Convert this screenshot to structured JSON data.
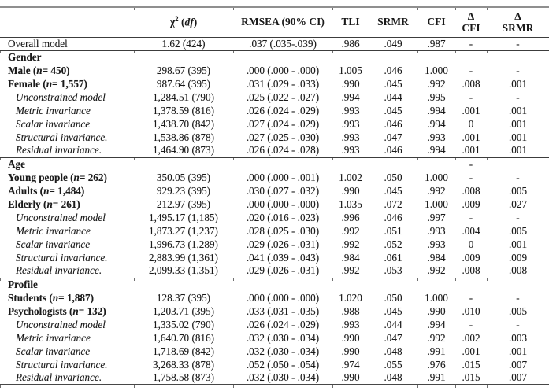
{
  "colors": {
    "text": "#1a1a1a",
    "rule_dark": "#3c3c3c",
    "rule_gray": "#8f8f8f"
  },
  "table": {
    "columns": [
      {
        "key": "model",
        "header_parts": []
      },
      {
        "key": "chi2",
        "header_parts": [
          {
            "t": "χ"
          },
          {
            "t": "2",
            "sup": true
          },
          {
            "t": " ("
          },
          {
            "t": "df",
            "i": true
          },
          {
            "t": ")"
          }
        ]
      },
      {
        "key": "rmsea",
        "header_parts": [
          {
            "t": "RMSEA (90% CI)"
          }
        ]
      },
      {
        "key": "tli",
        "header_parts": [
          {
            "t": "TLI"
          }
        ]
      },
      {
        "key": "srmr",
        "header_parts": [
          {
            "t": "SRMR"
          }
        ]
      },
      {
        "key": "cfi",
        "header_parts": [
          {
            "t": "CFI"
          }
        ]
      },
      {
        "key": "delta_cfi",
        "header_lines": [
          "Δ",
          "CFI"
        ]
      },
      {
        "key": "delta_srmr",
        "header_lines": [
          "Δ",
          "SRMR"
        ]
      }
    ],
    "rows": [
      {
        "style": "plain",
        "rule_above": false,
        "label_parts": [
          {
            "t": "Overall model"
          }
        ],
        "values": [
          "1.62 (424)",
          ".037 (.035-.039)",
          ".986",
          ".049",
          ".987",
          "-",
          "-"
        ]
      },
      {
        "style": "section",
        "rule_above": true,
        "label_parts": [
          {
            "t": "Gender"
          }
        ],
        "values": [
          "",
          "",
          "",
          "",
          "",
          "",
          ""
        ]
      },
      {
        "style": "group",
        "rule_above": false,
        "label_parts": [
          {
            "t": "Male ("
          },
          {
            "t": "n",
            "i": true
          },
          {
            "t": "= 450)"
          }
        ],
        "values": [
          "298.67 (395)",
          ".000 (.000 - .000)",
          "1.005",
          ".046",
          "1.000",
          "-",
          "-"
        ]
      },
      {
        "style": "group",
        "rule_above": false,
        "label_parts": [
          {
            "t": "Female ("
          },
          {
            "t": "n",
            "i": true
          },
          {
            "t": "= 1,557)"
          }
        ],
        "values": [
          "987.64 (395)",
          ".031 (.029 - .033)",
          ".990",
          ".045",
          ".992",
          ".008",
          ".001"
        ]
      },
      {
        "style": "sub",
        "rule_above": false,
        "label_parts": [
          {
            "t": "Unconstrained model"
          }
        ],
        "values": [
          "1,284.51 (790)",
          ".025 (.022 - .027)",
          ".994",
          ".044",
          ".995",
          "-",
          "-"
        ]
      },
      {
        "style": "sub",
        "rule_above": false,
        "label_parts": [
          {
            "t": "Metric invariance"
          }
        ],
        "values": [
          "1,378.59 (816)",
          ".026 (.024 - .029)",
          ".993",
          ".045",
          ".994",
          ".001",
          ".001"
        ]
      },
      {
        "style": "sub",
        "rule_above": false,
        "label_parts": [
          {
            "t": "Scalar invariance"
          }
        ],
        "values": [
          "1,438.70 (842)",
          ".027 (.024 - .029)",
          ".993",
          ".046",
          ".994",
          "0",
          ".001"
        ]
      },
      {
        "style": "sub",
        "rule_above": false,
        "label_parts": [
          {
            "t": "Structural invariance."
          }
        ],
        "values": [
          "1,538.86 (878)",
          ".027 (.025 - .030)",
          ".993",
          ".047",
          ".993",
          ".001",
          ".001"
        ]
      },
      {
        "style": "sub",
        "rule_above": false,
        "label_parts": [
          {
            "t": "Residual invariance."
          }
        ],
        "values": [
          "1,464.90 (873)",
          ".026 (.024 - .028)",
          ".993",
          ".046",
          ".994",
          ".001",
          ".001"
        ]
      },
      {
        "style": "section",
        "rule_above": true,
        "label_parts": [
          {
            "t": "Age"
          }
        ],
        "values": [
          "",
          "",
          "",
          "",
          "",
          "-",
          ""
        ]
      },
      {
        "style": "group",
        "rule_above": false,
        "label_parts": [
          {
            "t": "Young people ("
          },
          {
            "t": "n",
            "i": true
          },
          {
            "t": "= 262)"
          }
        ],
        "values": [
          "350.05 (395)",
          ".000 (.000 - .001)",
          "1.002",
          ".050",
          "1.000",
          "-",
          "-"
        ]
      },
      {
        "style": "group",
        "rule_above": false,
        "label_parts": [
          {
            "t": "Adults ("
          },
          {
            "t": "n",
            "i": true
          },
          {
            "t": "= 1,484)"
          }
        ],
        "values": [
          "929.23 (395)",
          ".030 (.027 - .032)",
          ".990",
          ".045",
          ".992",
          ".008",
          ".005"
        ]
      },
      {
        "style": "group",
        "rule_above": false,
        "label_parts": [
          {
            "t": "Elderly ("
          },
          {
            "t": "n",
            "i": true
          },
          {
            "t": "= 261)"
          }
        ],
        "values": [
          "212.97 (395)",
          ".000 (.000 - .000)",
          "1.035",
          ".072",
          "1.000",
          ".009",
          ".027"
        ]
      },
      {
        "style": "sub",
        "rule_above": false,
        "label_parts": [
          {
            "t": "Unconstrained model"
          }
        ],
        "values": [
          "1,495.17 (1,185)",
          ".020 (.016 - .023)",
          ".996",
          ".046",
          ".997",
          "-",
          "-"
        ]
      },
      {
        "style": "sub",
        "rule_above": false,
        "label_parts": [
          {
            "t": "Metric invariance"
          }
        ],
        "values": [
          "1,873.27 (1,237)",
          ".028 (.025 - .030)",
          ".992",
          ".051",
          ".993",
          ".004",
          ".005"
        ]
      },
      {
        "style": "sub",
        "rule_above": false,
        "label_parts": [
          {
            "t": "Scalar invariance"
          }
        ],
        "values": [
          "1,996.73 (1,289)",
          ".029 (.026 - .031)",
          ".992",
          ".052",
          ".993",
          "0",
          ".001"
        ]
      },
      {
        "style": "sub",
        "rule_above": false,
        "label_parts": [
          {
            "t": "Structural invariance."
          }
        ],
        "values": [
          "2,883.99 (1,361)",
          ".041 (.039 - .043)",
          ".984",
          ".061",
          ".984",
          ".009",
          ".009"
        ]
      },
      {
        "style": "sub",
        "rule_above": false,
        "label_parts": [
          {
            "t": "Residual invariance."
          }
        ],
        "values": [
          "2,099.33 (1,351)",
          ".029 (.026 - .031)",
          ".992",
          ".053",
          ".992",
          ".008",
          ".008"
        ]
      },
      {
        "style": "section",
        "rule_above": true,
        "label_parts": [
          {
            "t": "Profile"
          }
        ],
        "values": [
          "",
          "",
          "",
          "",
          "",
          "",
          ""
        ]
      },
      {
        "style": "group",
        "rule_above": false,
        "label_parts": [
          {
            "t": "Students ("
          },
          {
            "t": "n",
            "i": true
          },
          {
            "t": "= 1,887)"
          }
        ],
        "values": [
          "128.37 (395)",
          ".000 (.000 - .000)",
          "1.020",
          ".050",
          "1.000",
          "-",
          "-"
        ]
      },
      {
        "style": "group",
        "rule_above": false,
        "label_parts": [
          {
            "t": "Psychologists ("
          },
          {
            "t": "n",
            "i": true
          },
          {
            "t": "= 132)"
          }
        ],
        "values": [
          "1,203.71 (395)",
          ".033 (.031 - .035)",
          ".988",
          ".045",
          ".990",
          ".010",
          ".005"
        ]
      },
      {
        "style": "sub",
        "rule_above": false,
        "label_parts": [
          {
            "t": "Unconstrained model"
          }
        ],
        "values": [
          "1,335.02 (790)",
          ".026 (.024 - .029)",
          ".993",
          ".044",
          ".994",
          "-",
          "-"
        ]
      },
      {
        "style": "sub",
        "rule_above": false,
        "label_parts": [
          {
            "t": "Metric invariance"
          }
        ],
        "values": [
          "1,640.70 (816)",
          ".032 (.030 - .034)",
          ".990",
          ".047",
          ".992",
          ".002",
          ".003"
        ]
      },
      {
        "style": "sub",
        "rule_above": false,
        "label_parts": [
          {
            "t": "Scalar invariance"
          }
        ],
        "values": [
          "1,718.69 (842)",
          ".032 (.030 - .034)",
          ".990",
          ".048",
          ".991",
          ".001",
          ".001"
        ]
      },
      {
        "style": "sub",
        "rule_above": false,
        "label_parts": [
          {
            "t": "Structural invariance."
          }
        ],
        "values": [
          "3,268.33 (878)",
          ".052 (.050 - .054)",
          ".974",
          ".055",
          ".976",
          ".015",
          ".007"
        ]
      },
      {
        "style": "sub",
        "rule_above": false,
        "label_parts": [
          {
            "t": "Residual invariance."
          }
        ],
        "values": [
          "1,758.58 (873)",
          ".032 (.030 - .034)",
          ".990",
          ".048",
          ".991",
          ".015",
          ".007"
        ]
      }
    ]
  }
}
